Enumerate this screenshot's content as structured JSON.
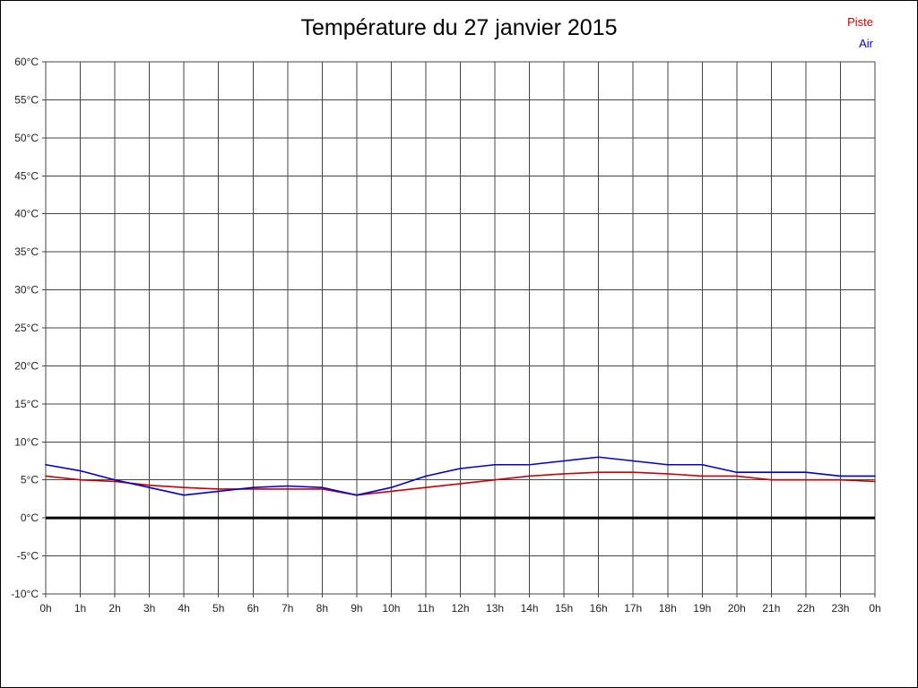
{
  "chart_data": {
    "type": "line",
    "title": "Température du 27 janvier 2015",
    "x_tick_labels": [
      "0h",
      "1h",
      "2h",
      "3h",
      "4h",
      "5h",
      "6h",
      "7h",
      "8h",
      "9h",
      "10h",
      "11h",
      "12h",
      "13h",
      "14h",
      "15h",
      "16h",
      "17h",
      "18h",
      "19h",
      "20h",
      "21h",
      "22h",
      "23h",
      "0h"
    ],
    "y_tick_values": [
      60,
      55,
      50,
      45,
      40,
      35,
      30,
      25,
      20,
      15,
      10,
      5,
      0,
      -5,
      -10
    ],
    "y_tick_labels": [
      "60°C",
      "55°C",
      "50°C",
      "45°C",
      "40°C",
      "35°C",
      "30°C",
      "25°C",
      "20°C",
      "15°C",
      "10°C",
      "5°C",
      "0°C",
      "-5°C",
      "-10°C"
    ],
    "ylim": [
      -10,
      60
    ],
    "y_unit": "°C",
    "grid": true,
    "grid_color": "#444444",
    "zero_line_color": "#000000",
    "legend_position": "top-right",
    "series": [
      {
        "name": "Piste",
        "color": "#cc0000",
        "values": [
          5.5,
          5.0,
          4.8,
          4.3,
          4.0,
          3.8,
          3.8,
          3.8,
          3.8,
          3.0,
          3.5,
          4.0,
          4.5,
          5.0,
          5.5,
          5.8,
          6.0,
          6.0,
          5.8,
          5.5,
          5.5,
          5.0,
          5.0,
          5.0,
          4.8
        ]
      },
      {
        "name": "Air",
        "color": "#0000cc",
        "values": [
          7.0,
          6.2,
          5.0,
          4.0,
          3.0,
          3.5,
          4.0,
          4.2,
          4.0,
          3.0,
          4.0,
          5.5,
          6.5,
          7.0,
          7.0,
          7.5,
          8.0,
          7.5,
          7.0,
          7.0,
          6.0,
          6.0,
          6.0,
          5.5,
          5.5
        ]
      }
    ]
  }
}
